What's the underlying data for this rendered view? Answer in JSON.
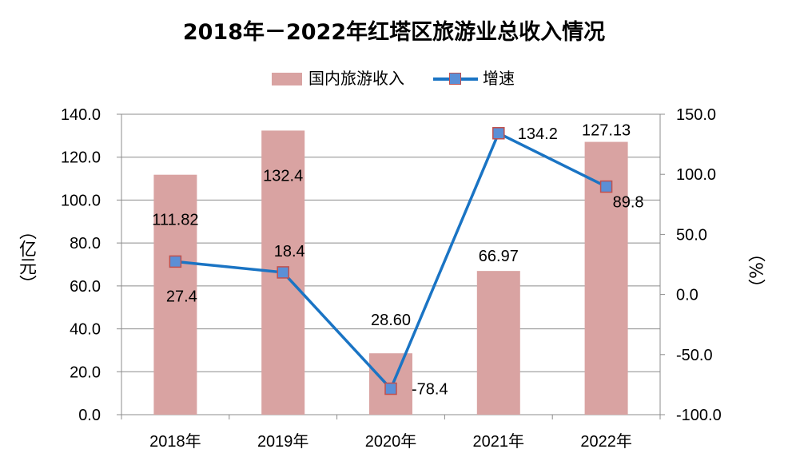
{
  "chart_data": {
    "type": "bar+line",
    "title": "2018年－2022年红塔区旅游业总收入情况",
    "categories": [
      "2018年",
      "2019年",
      "2020年",
      "2021年",
      "2022年"
    ],
    "series": [
      {
        "name": "国内旅游收入",
        "type": "bar",
        "axis": "left",
        "values": [
          111.82,
          132.4,
          28.6,
          66.97,
          127.13
        ],
        "labels": [
          "111.82",
          "132.4",
          "28.60",
          "66.97",
          "127.13"
        ],
        "color": "#D9A3A2"
      },
      {
        "name": "增速",
        "type": "line",
        "axis": "right",
        "values": [
          27.4,
          18.4,
          -78.4,
          134.2,
          89.8
        ],
        "labels": [
          "27.4",
          "18.4",
          "-78.4",
          "134.2",
          "89.8"
        ],
        "color": "#1A74C4",
        "marker_fill": "#5B8FD6",
        "marker_edge": "#C0504D"
      }
    ],
    "ylabel_left": "（亿元）",
    "ylabel_right": "（%）",
    "ylim_left": [
      0,
      140
    ],
    "ylim_right": [
      -100,
      150
    ],
    "yticks_left": [
      "0.0",
      "20.0",
      "40.0",
      "60.0",
      "80.0",
      "100.0",
      "120.0",
      "140.0"
    ],
    "yticks_right": [
      "-100.0",
      "-50.0",
      "0.0",
      "50.0",
      "100.0",
      "150.0"
    ],
    "grid": true,
    "legend": "top"
  }
}
